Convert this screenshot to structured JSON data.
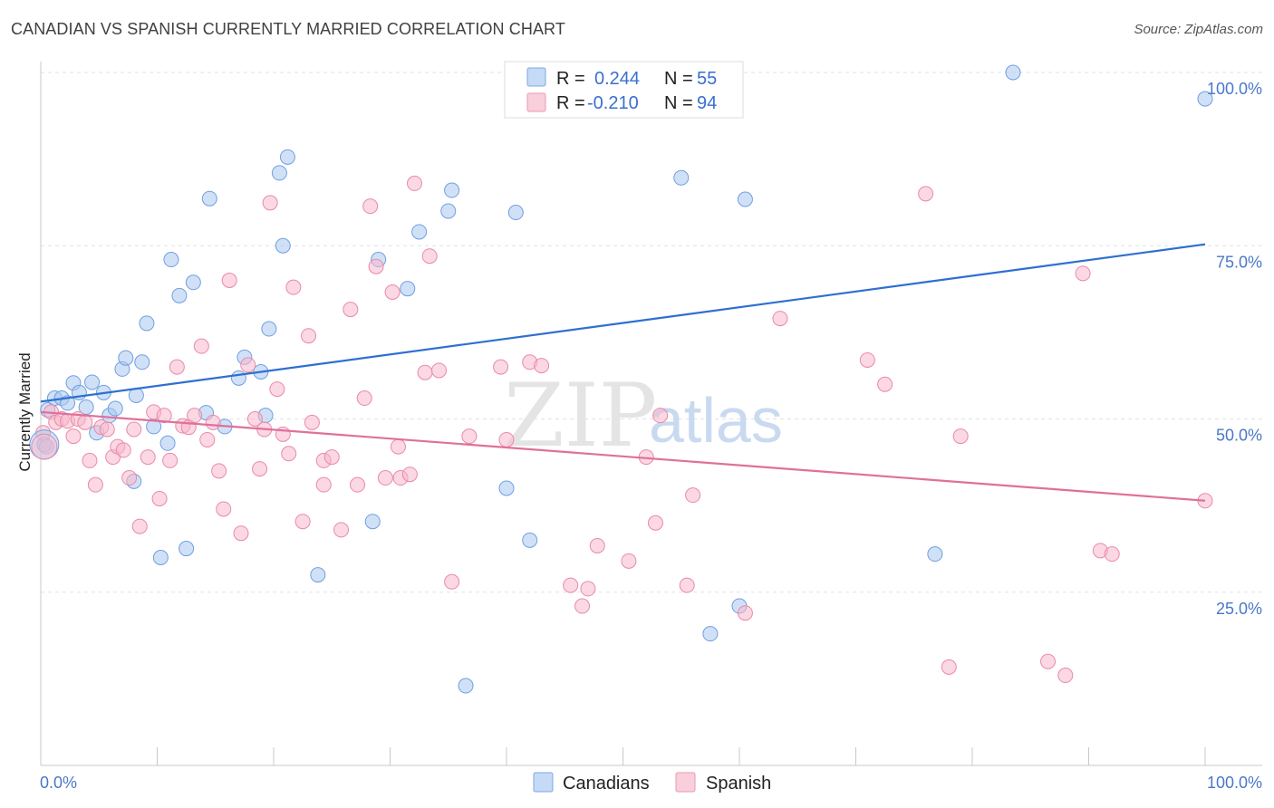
{
  "title": "CANADIAN VS SPANISH CURRENTLY MARRIED CORRELATION CHART",
  "source": "Source: ZipAtlas.com",
  "watermark": {
    "part1": "ZIP",
    "part2": "atlas"
  },
  "legend": {
    "rows": [
      {
        "r_label": "R =",
        "r_value": "0.244",
        "n_label": "N =",
        "n_value": "55",
        "color": "#a9c8f0"
      },
      {
        "r_label": "R =",
        "r_value": "-0.210",
        "n_label": "N =",
        "n_value": "94",
        "color": "#f7b8cc"
      }
    ]
  },
  "bottom_legend": [
    {
      "label": "Canadians",
      "color": "#a9c8f0"
    },
    {
      "label": "Spanish",
      "color": "#f7b8cc"
    }
  ],
  "chart_data": {
    "type": "scatter",
    "title": "CANADIAN VS SPANISH CURRENTLY MARRIED CORRELATION CHART",
    "xlabel": "",
    "ylabel": "Currently Married",
    "xlim": [
      0,
      100
    ],
    "ylim": [
      0,
      100
    ],
    "x_tick_labels": [
      "0.0%",
      "100.0%"
    ],
    "y_tick_labels": [
      "25.0%",
      "50.0%",
      "75.0%",
      "100.0%"
    ],
    "y_ticks": [
      25,
      50,
      75,
      100
    ],
    "grid": true,
    "series": [
      {
        "name": "Canadians",
        "color": "#a9c8f0",
        "stroke": "#6f9fe0",
        "trend": {
          "x": [
            0,
            100
          ],
          "y": [
            52.5,
            75.2
          ],
          "color": "#2f6fd0"
        },
        "points": [
          [
            0.3,
            46.3
          ],
          [
            0.6,
            51.3
          ],
          [
            1.2,
            53.0
          ],
          [
            1.8,
            53.0
          ],
          [
            2.3,
            52.3
          ],
          [
            2.8,
            55.2
          ],
          [
            3.3,
            53.8
          ],
          [
            3.9,
            51.7
          ],
          [
            4.4,
            55.3
          ],
          [
            4.8,
            48.0
          ],
          [
            5.4,
            53.8
          ],
          [
            5.9,
            50.5
          ],
          [
            6.4,
            51.5
          ],
          [
            7.0,
            57.2
          ],
          [
            7.3,
            58.8
          ],
          [
            8.0,
            41.0
          ],
          [
            8.2,
            53.4
          ],
          [
            8.7,
            58.2
          ],
          [
            9.1,
            63.8
          ],
          [
            9.7,
            48.9
          ],
          [
            10.3,
            30.0
          ],
          [
            10.9,
            46.5
          ],
          [
            11.2,
            73.0
          ],
          [
            11.9,
            67.8
          ],
          [
            12.5,
            31.3
          ],
          [
            13.1,
            69.7
          ],
          [
            14.2,
            50.9
          ],
          [
            14.5,
            81.8
          ],
          [
            15.8,
            48.9
          ],
          [
            17.0,
            55.9
          ],
          [
            17.5,
            58.9
          ],
          [
            18.9,
            56.8
          ],
          [
            19.3,
            50.5
          ],
          [
            19.6,
            63.0
          ],
          [
            20.5,
            85.5
          ],
          [
            20.8,
            75.0
          ],
          [
            21.2,
            87.8
          ],
          [
            23.8,
            27.5
          ],
          [
            28.5,
            35.2
          ],
          [
            29.0,
            73.0
          ],
          [
            31.5,
            68.8
          ],
          [
            32.5,
            77.0
          ],
          [
            35.0,
            80.0
          ],
          [
            35.3,
            83.0
          ],
          [
            36.5,
            11.5
          ],
          [
            40.0,
            40.0
          ],
          [
            40.8,
            79.8
          ],
          [
            42.0,
            32.5
          ],
          [
            60.0,
            23.0
          ],
          [
            55.0,
            84.8
          ],
          [
            57.5,
            19.0
          ],
          [
            60.5,
            81.7
          ],
          [
            76.8,
            30.5
          ],
          [
            83.5,
            100.0
          ],
          [
            100.0,
            96.2
          ]
        ]
      },
      {
        "name": "Spanish",
        "color": "#f7b8cc",
        "stroke": "#e98aa8",
        "trend": {
          "x": [
            0,
            100
          ],
          "y": [
            51.0,
            38.2
          ],
          "color": "#e0709a"
        },
        "points": [
          [
            0.2,
            48.0
          ],
          [
            0.5,
            46.0
          ],
          [
            0.9,
            51.0
          ],
          [
            1.3,
            49.5
          ],
          [
            1.8,
            50.0
          ],
          [
            2.3,
            49.7
          ],
          [
            2.8,
            47.5
          ],
          [
            3.2,
            50.0
          ],
          [
            3.8,
            49.5
          ],
          [
            4.2,
            44.0
          ],
          [
            4.7,
            40.5
          ],
          [
            5.2,
            48.8
          ],
          [
            5.7,
            48.5
          ],
          [
            6.2,
            44.5
          ],
          [
            6.6,
            46.0
          ],
          [
            7.1,
            45.5
          ],
          [
            7.6,
            41.5
          ],
          [
            8.0,
            48.5
          ],
          [
            8.5,
            34.5
          ],
          [
            9.2,
            44.5
          ],
          [
            9.7,
            51.0
          ],
          [
            10.2,
            38.5
          ],
          [
            10.6,
            50.5
          ],
          [
            11.1,
            44.0
          ],
          [
            11.7,
            57.5
          ],
          [
            12.2,
            49.0
          ],
          [
            12.7,
            48.8
          ],
          [
            13.2,
            50.5
          ],
          [
            13.8,
            60.5
          ],
          [
            14.3,
            47.0
          ],
          [
            14.8,
            49.5
          ],
          [
            15.3,
            42.5
          ],
          [
            15.7,
            37.0
          ],
          [
            16.2,
            70.0
          ],
          [
            17.2,
            33.5
          ],
          [
            17.8,
            57.8
          ],
          [
            18.4,
            50.0
          ],
          [
            18.8,
            42.8
          ],
          [
            19.2,
            48.5
          ],
          [
            19.7,
            81.2
          ],
          [
            20.3,
            54.3
          ],
          [
            20.8,
            47.8
          ],
          [
            21.3,
            45.0
          ],
          [
            21.7,
            69.0
          ],
          [
            22.5,
            35.2
          ],
          [
            23.0,
            62.0
          ],
          [
            23.3,
            49.5
          ],
          [
            24.3,
            40.5
          ],
          [
            24.3,
            44.0
          ],
          [
            25.0,
            44.5
          ],
          [
            25.8,
            34.0
          ],
          [
            26.6,
            65.8
          ],
          [
            27.2,
            40.5
          ],
          [
            27.8,
            53.0
          ],
          [
            28.3,
            80.7
          ],
          [
            28.8,
            72.0
          ],
          [
            29.6,
            41.5
          ],
          [
            30.2,
            68.3
          ],
          [
            30.7,
            46.0
          ],
          [
            30.9,
            41.5
          ],
          [
            31.7,
            42.0
          ],
          [
            32.1,
            84.0
          ],
          [
            33.0,
            56.7
          ],
          [
            33.4,
            73.5
          ],
          [
            34.2,
            57.0
          ],
          [
            35.3,
            26.5
          ],
          [
            36.8,
            47.5
          ],
          [
            39.5,
            57.5
          ],
          [
            40.0,
            47.0
          ],
          [
            42.0,
            58.2
          ],
          [
            43.0,
            57.7
          ],
          [
            45.5,
            26.0
          ],
          [
            46.5,
            23.0
          ],
          [
            47.0,
            25.5
          ],
          [
            47.8,
            31.7
          ],
          [
            50.5,
            29.5
          ],
          [
            52.0,
            44.5
          ],
          [
            52.8,
            35.0
          ],
          [
            53.2,
            50.5
          ],
          [
            55.5,
            26.0
          ],
          [
            56.0,
            39.0
          ],
          [
            60.5,
            22.0
          ],
          [
            63.5,
            64.5
          ],
          [
            71.0,
            58.5
          ],
          [
            72.5,
            55.0
          ],
          [
            76.0,
            82.5
          ],
          [
            78.0,
            14.2
          ],
          [
            79.0,
            47.5
          ],
          [
            86.5,
            15.0
          ],
          [
            88.0,
            13.0
          ],
          [
            89.5,
            71.0
          ],
          [
            91.0,
            31.0
          ],
          [
            92.0,
            30.5
          ],
          [
            100.0,
            38.2
          ]
        ]
      }
    ]
  }
}
